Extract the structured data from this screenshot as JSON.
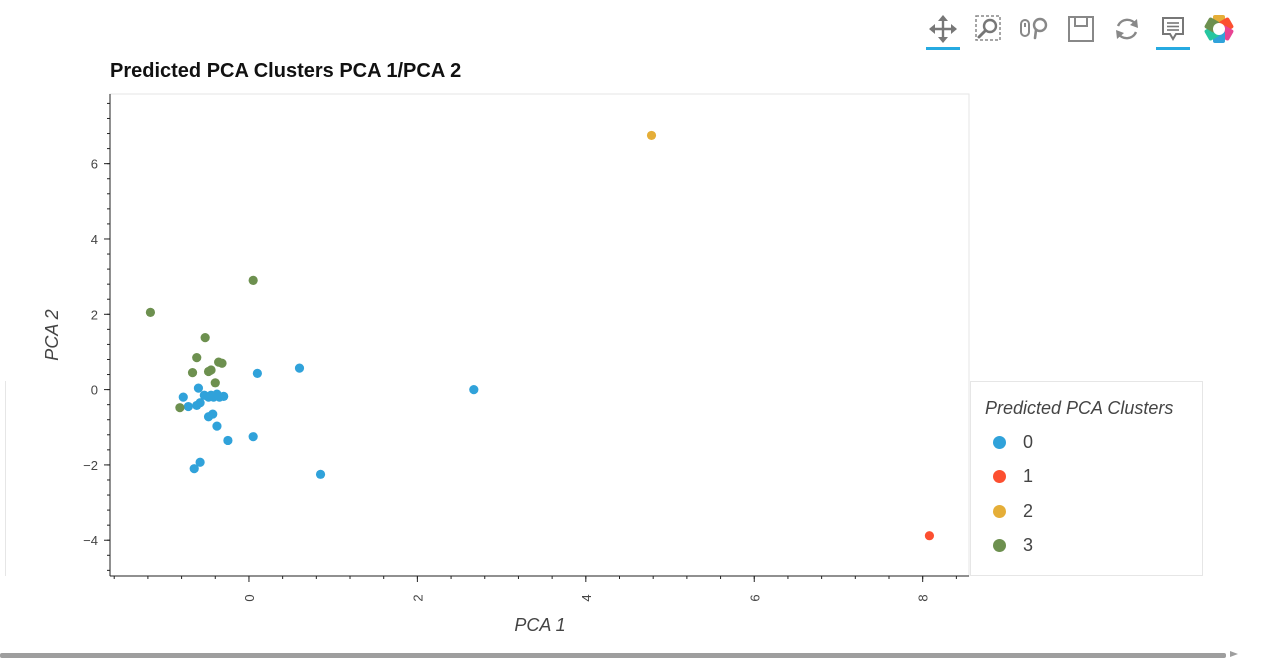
{
  "toolbar": {
    "tools": [
      {
        "name": "pan-icon",
        "active": true
      },
      {
        "name": "box-zoom-icon",
        "active": false
      },
      {
        "name": "wheel-zoom-icon",
        "active": false
      },
      {
        "name": "save-icon",
        "active": false
      },
      {
        "name": "reset-icon",
        "active": false
      },
      {
        "name": "hover-icon",
        "active": true
      },
      {
        "name": "bokeh-logo-icon",
        "active": false
      }
    ],
    "accent": "#26aae1"
  },
  "chart_data": {
    "type": "scatter",
    "title": "Predicted PCA Clusters PCA 1/PCA 2",
    "xlabel": "PCA 1",
    "ylabel": "PCA 2",
    "xlim": [
      -1.65,
      8.55
    ],
    "ylim": [
      -4.95,
      7.85
    ],
    "xticks": [
      "0",
      "2",
      "4",
      "6",
      "8"
    ],
    "yticks": [
      "−4",
      "−2",
      "0",
      "2",
      "4",
      "6"
    ],
    "xtick_values": [
      0,
      2,
      4,
      6,
      8
    ],
    "ytick_values": [
      -4,
      -2,
      0,
      2,
      4,
      6
    ],
    "grid": false,
    "legend_position": "right",
    "legend_title": "Predicted PCA Clusters",
    "series": [
      {
        "name": "0",
        "color": "#30a2da",
        "points": [
          [
            -0.78,
            -0.2
          ],
          [
            -0.72,
            -0.45
          ],
          [
            -0.62,
            -0.42
          ],
          [
            -0.6,
            0.04
          ],
          [
            -0.58,
            -0.35
          ],
          [
            -0.53,
            -0.15
          ],
          [
            -0.48,
            -0.2
          ],
          [
            -0.45,
            -0.15
          ],
          [
            -0.48,
            -0.72
          ],
          [
            -0.43,
            -0.65
          ],
          [
            -0.42,
            -0.2
          ],
          [
            -0.38,
            -0.12
          ],
          [
            -0.35,
            -0.2
          ],
          [
            -0.38,
            -0.97
          ],
          [
            -0.3,
            -0.18
          ],
          [
            -0.25,
            -1.35
          ],
          [
            0.05,
            -1.25
          ],
          [
            -0.65,
            -2.1
          ],
          [
            -0.58,
            -1.93
          ],
          [
            0.1,
            0.43
          ],
          [
            0.6,
            0.57
          ],
          [
            0.85,
            -2.25
          ],
          [
            2.67,
            0.0
          ]
        ]
      },
      {
        "name": "1",
        "color": "#fc4f30",
        "points": [
          [
            8.08,
            -3.88
          ]
        ]
      },
      {
        "name": "2",
        "color": "#e5ae38",
        "points": [
          [
            4.78,
            6.75
          ]
        ]
      },
      {
        "name": "3",
        "color": "#6d904f",
        "points": [
          [
            -1.17,
            2.05
          ],
          [
            -0.82,
            -0.48
          ],
          [
            -0.67,
            0.45
          ],
          [
            -0.62,
            0.85
          ],
          [
            -0.52,
            1.38
          ],
          [
            -0.48,
            0.48
          ],
          [
            -0.45,
            0.52
          ],
          [
            -0.4,
            0.18
          ],
          [
            -0.36,
            0.73
          ],
          [
            -0.32,
            0.7
          ],
          [
            0.05,
            2.9
          ]
        ]
      }
    ]
  }
}
